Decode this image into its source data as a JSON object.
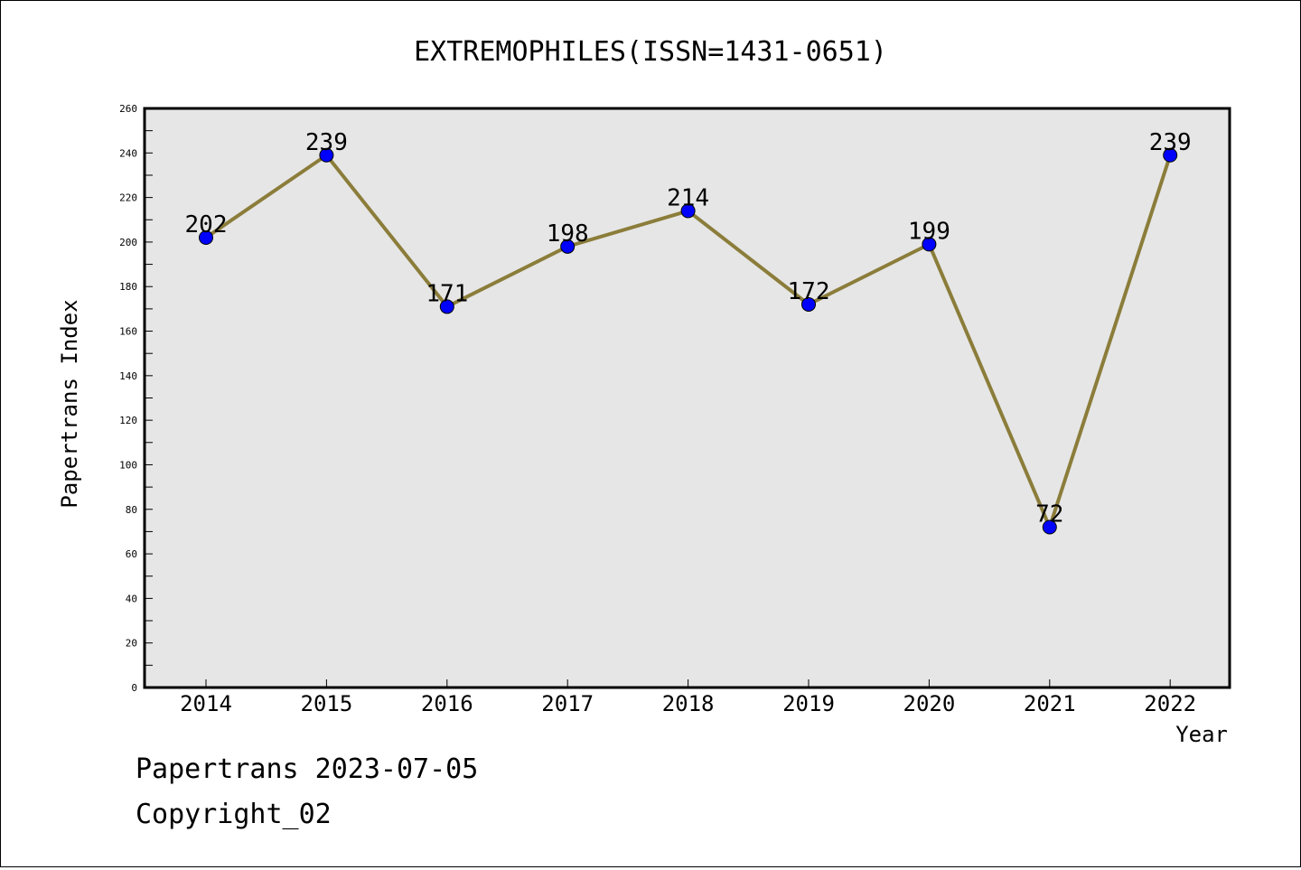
{
  "footer": {
    "source_line": "Papertrans 2023-07-05",
    "copyright_line": "Copyright_02"
  },
  "chart_data": {
    "type": "line",
    "title": "EXTREMOPHILES(ISSN=1431-0651)",
    "xlabel": "Year",
    "ylabel": "Papertrans Index",
    "x": [
      "2014",
      "2015",
      "2016",
      "2017",
      "2018",
      "2019",
      "2020",
      "2021",
      "2022"
    ],
    "series": [
      {
        "values": [
          202,
          239,
          171,
          198,
          214,
          172,
          199,
          72,
          239
        ],
        "line_color": "#8b7d3a",
        "marker_color": "#0000ff"
      }
    ],
    "data_labels": [
      "202",
      "239",
      "171",
      "198",
      "214",
      "172",
      "199",
      "72",
      "239"
    ],
    "ylim": [
      0,
      260
    ],
    "y_ticks": [
      0,
      20,
      40,
      60,
      80,
      100,
      120,
      140,
      160,
      180,
      200,
      220,
      240,
      260
    ],
    "y_tick_labels": [
      "0",
      "20",
      "40",
      "60",
      "80",
      "100",
      "120",
      "140",
      "160",
      "180",
      "200",
      "220",
      "240",
      "260"
    ],
    "grid": false,
    "plot_background": "#e6e6e6"
  }
}
